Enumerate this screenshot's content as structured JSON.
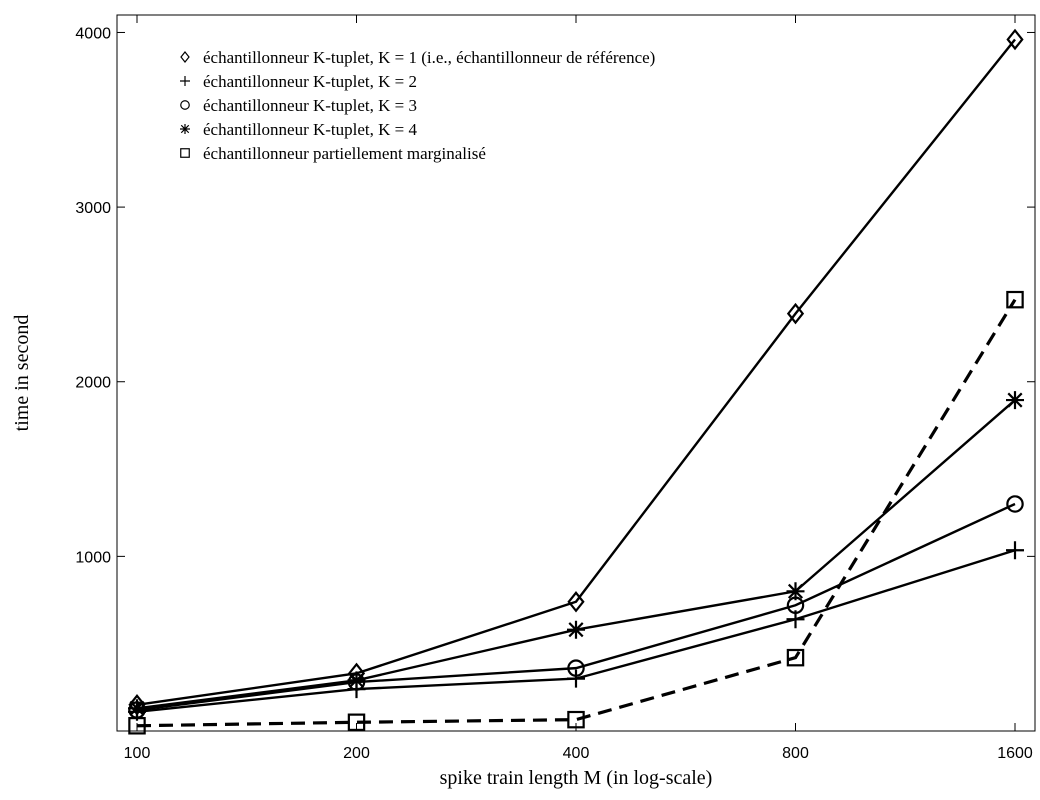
{
  "chart_data": {
    "type": "line",
    "x_scale": "log",
    "x": [
      100,
      200,
      400,
      800,
      1600
    ],
    "xticks": [
      "100",
      "200",
      "400",
      "800",
      "1600"
    ],
    "yticks": [
      1000,
      2000,
      3000,
      4000
    ],
    "xlim": [
      100,
      1600
    ],
    "ylim": [
      0,
      4100
    ],
    "xlabel": "spike train length M (in log-scale)",
    "ylabel": "time in second",
    "grid": false,
    "legend_position": "top-left",
    "series": [
      {
        "name": "échantillonneur K-tuplet, K = 1 (i.e., échantillonneur de référence)",
        "marker": "diamond",
        "dash": false,
        "values": [
          150,
          330,
          740,
          2390,
          3960
        ]
      },
      {
        "name": "échantillonneur K-tuplet, K = 2",
        "marker": "plus",
        "dash": false,
        "values": [
          110,
          240,
          300,
          640,
          1035
        ]
      },
      {
        "name": "échantillonneur K-tuplet, K = 3",
        "marker": "circle",
        "dash": false,
        "values": [
          120,
          280,
          360,
          720,
          1300
        ]
      },
      {
        "name": "échantillonneur K-tuplet, K = 4",
        "marker": "star",
        "dash": false,
        "values": [
          130,
          290,
          580,
          800,
          1895
        ]
      },
      {
        "name": "échantillonneur partiellement marginalisé",
        "marker": "square",
        "dash": true,
        "values": [
          30,
          50,
          65,
          420,
          2470
        ]
      }
    ]
  }
}
